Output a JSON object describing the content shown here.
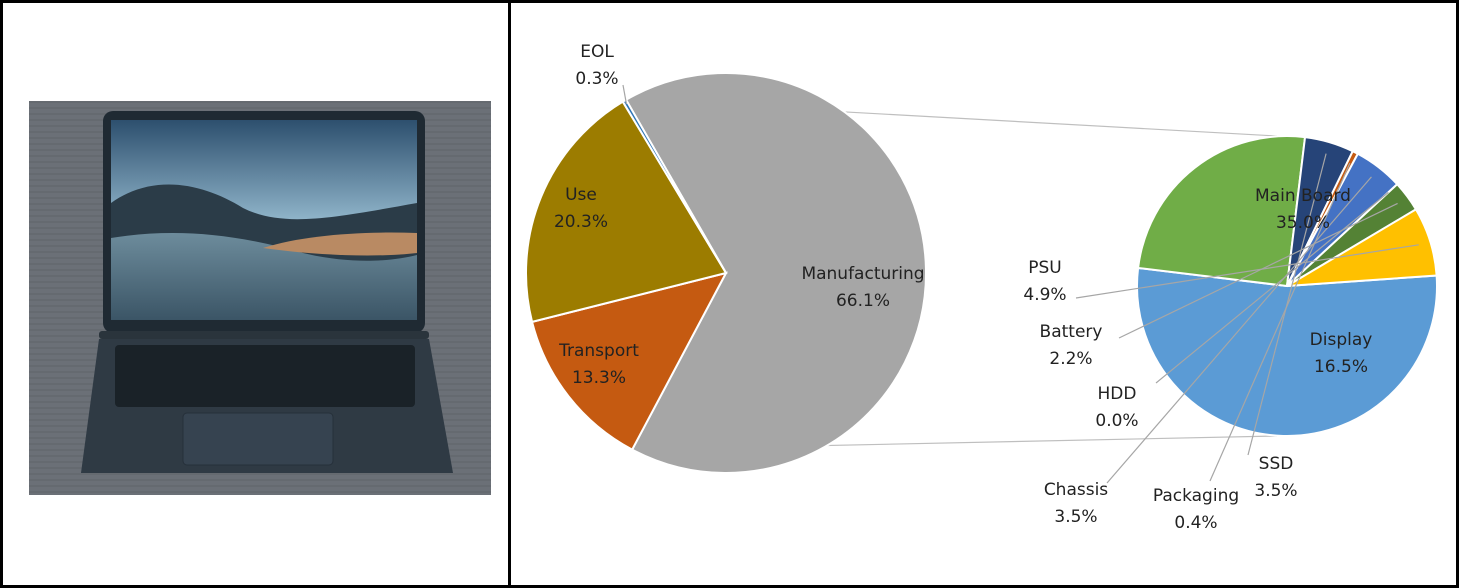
{
  "left_panel": {
    "image": {
      "description_icon": "laptop-photo-icon"
    }
  },
  "chart_data": [
    {
      "type": "pie",
      "title": "",
      "slices": [
        {
          "label": "Manufacturing",
          "value": 66.1,
          "display": "66.1%",
          "color": "#a6a6a6"
        },
        {
          "label": "Transport",
          "value": 13.3,
          "display": "13.3%",
          "color": "#c55a11"
        },
        {
          "label": "Use",
          "value": 20.3,
          "display": "20.3%",
          "color": "#9c7c00"
        },
        {
          "label": "EOL",
          "value": 0.3,
          "display": "0.3%",
          "color": "#2e75b6"
        }
      ]
    },
    {
      "type": "pie",
      "title": "",
      "breakdown_of": "Manufacturing",
      "slices": [
        {
          "label": "Main Board",
          "value": 35.0,
          "display": "35.0%",
          "color": "#5b9bd5"
        },
        {
          "label": "Display",
          "value": 16.5,
          "display": "16.5%",
          "color": "#70ad47"
        },
        {
          "label": "SSD",
          "value": 3.5,
          "display": "3.5%",
          "color": "#264478"
        },
        {
          "label": "Packaging",
          "value": 0.4,
          "display": "0.4%",
          "color": "#c55a11"
        },
        {
          "label": "Chassis",
          "value": 3.5,
          "display": "3.5%",
          "color": "#4472c4"
        },
        {
          "label": "HDD",
          "value": 0.0,
          "display": "0.0%",
          "color": "#7f7f7f"
        },
        {
          "label": "Battery",
          "value": 2.2,
          "display": "2.2%",
          "color": "#548235"
        },
        {
          "label": "PSU",
          "value": 4.9,
          "display": "4.9%",
          "color": "#ffc000"
        }
      ]
    }
  ]
}
